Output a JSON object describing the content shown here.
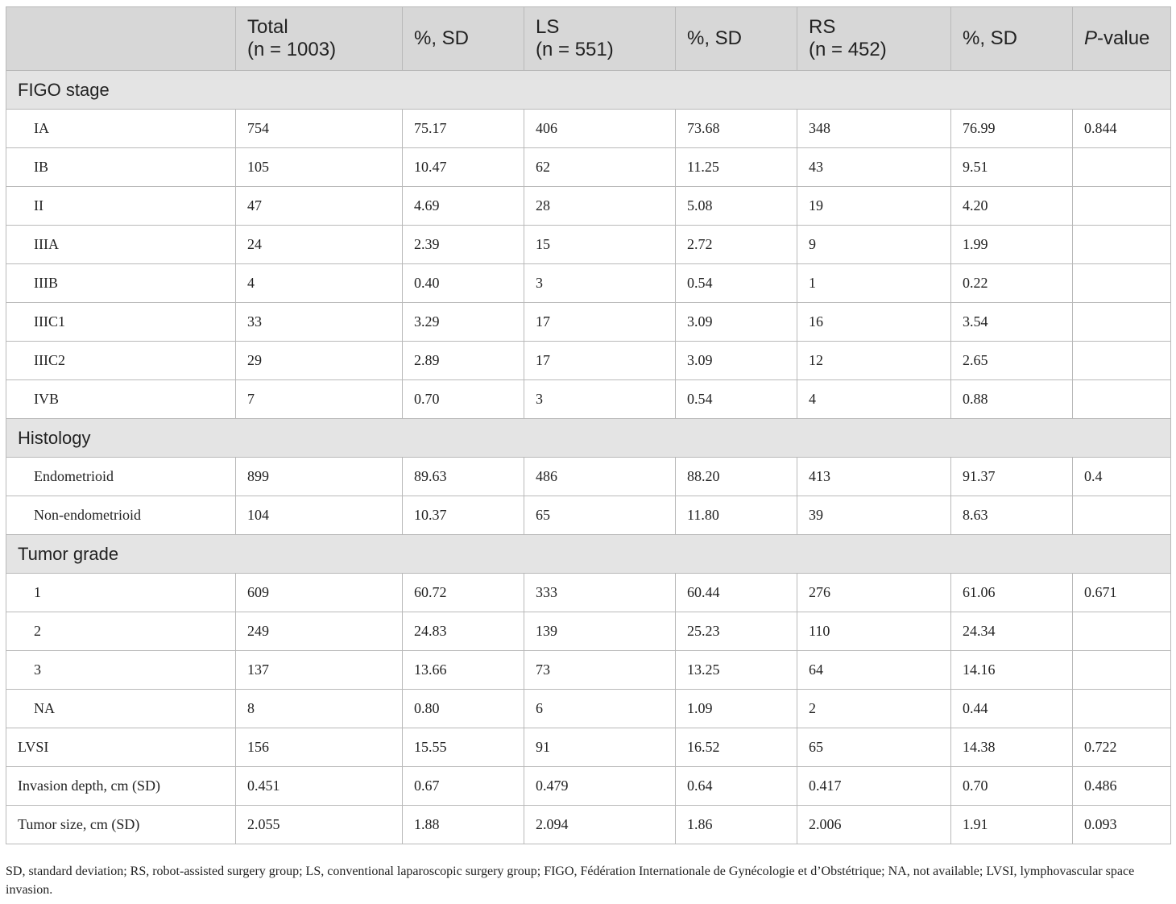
{
  "header": {
    "col0": "",
    "total_l1": "Total",
    "total_l2": "(n = 1003)",
    "pct1": "%, SD",
    "ls_l1": "LS",
    "ls_l2": "(n = 551)",
    "pct2": "%, SD",
    "rs_l1": "RS",
    "rs_l2": "(n = 452)",
    "pct3": "%, SD",
    "p_italic": "P",
    "p_rest": "-value"
  },
  "sections": {
    "figo": "FIGO stage",
    "histology": "Histology",
    "grade": "Tumor grade"
  },
  "rows": [
    [
      "IA",
      "754",
      "75.17",
      "406",
      "73.68",
      "348",
      "76.99",
      "0.844"
    ],
    [
      "IB",
      "105",
      "10.47",
      "62",
      "11.25",
      "43",
      "9.51",
      ""
    ],
    [
      "II",
      "47",
      "4.69",
      "28",
      "5.08",
      "19",
      "4.20",
      ""
    ],
    [
      "IIIA",
      "24",
      "2.39",
      "15",
      "2.72",
      "9",
      "1.99",
      ""
    ],
    [
      "IIIB",
      "4",
      "0.40",
      "3",
      "0.54",
      "1",
      "0.22",
      ""
    ],
    [
      "IIIC1",
      "33",
      "3.29",
      "17",
      "3.09",
      "16",
      "3.54",
      ""
    ],
    [
      "IIIC2",
      "29",
      "2.89",
      "17",
      "3.09",
      "12",
      "2.65",
      ""
    ],
    [
      "IVB",
      "7",
      "0.70",
      "3",
      "0.54",
      "4",
      "0.88",
      ""
    ],
    [
      "Endometrioid",
      "899",
      "89.63",
      "486",
      "88.20",
      "413",
      "91.37",
      "0.4"
    ],
    [
      "Non-endometrioid",
      "104",
      "10.37",
      "65",
      "11.80",
      "39",
      "8.63",
      ""
    ],
    [
      "1",
      "609",
      "60.72",
      "333",
      "60.44",
      "276",
      "61.06",
      "0.671"
    ],
    [
      "2",
      "249",
      "24.83",
      "139",
      "25.23",
      "110",
      "24.34",
      ""
    ],
    [
      "3",
      "137",
      "13.66",
      "73",
      "13.25",
      "64",
      "14.16",
      ""
    ],
    [
      "NA",
      "8",
      "0.80",
      "6",
      "1.09",
      "2",
      "0.44",
      ""
    ],
    [
      "LVSI",
      "156",
      "15.55",
      "91",
      "16.52",
      "65",
      "14.38",
      "0.722"
    ],
    [
      "Invasion depth, cm (SD)",
      "0.451",
      "0.67",
      "0.479",
      "0.64",
      "0.417",
      "0.70",
      "0.486"
    ],
    [
      "Tumor size, cm (SD)",
      "2.055",
      "1.88",
      "2.094",
      "1.86",
      "2.006",
      "1.91",
      "0.093"
    ]
  ],
  "footnote": "SD, standard deviation; RS, robot-assisted surgery group; LS, conventional laparoscopic surgery group; FIGO, Fédération Internationale de Gynécologie et d’Obstétrique; NA, not available; LVSI, lymphovascular space invasion."
}
